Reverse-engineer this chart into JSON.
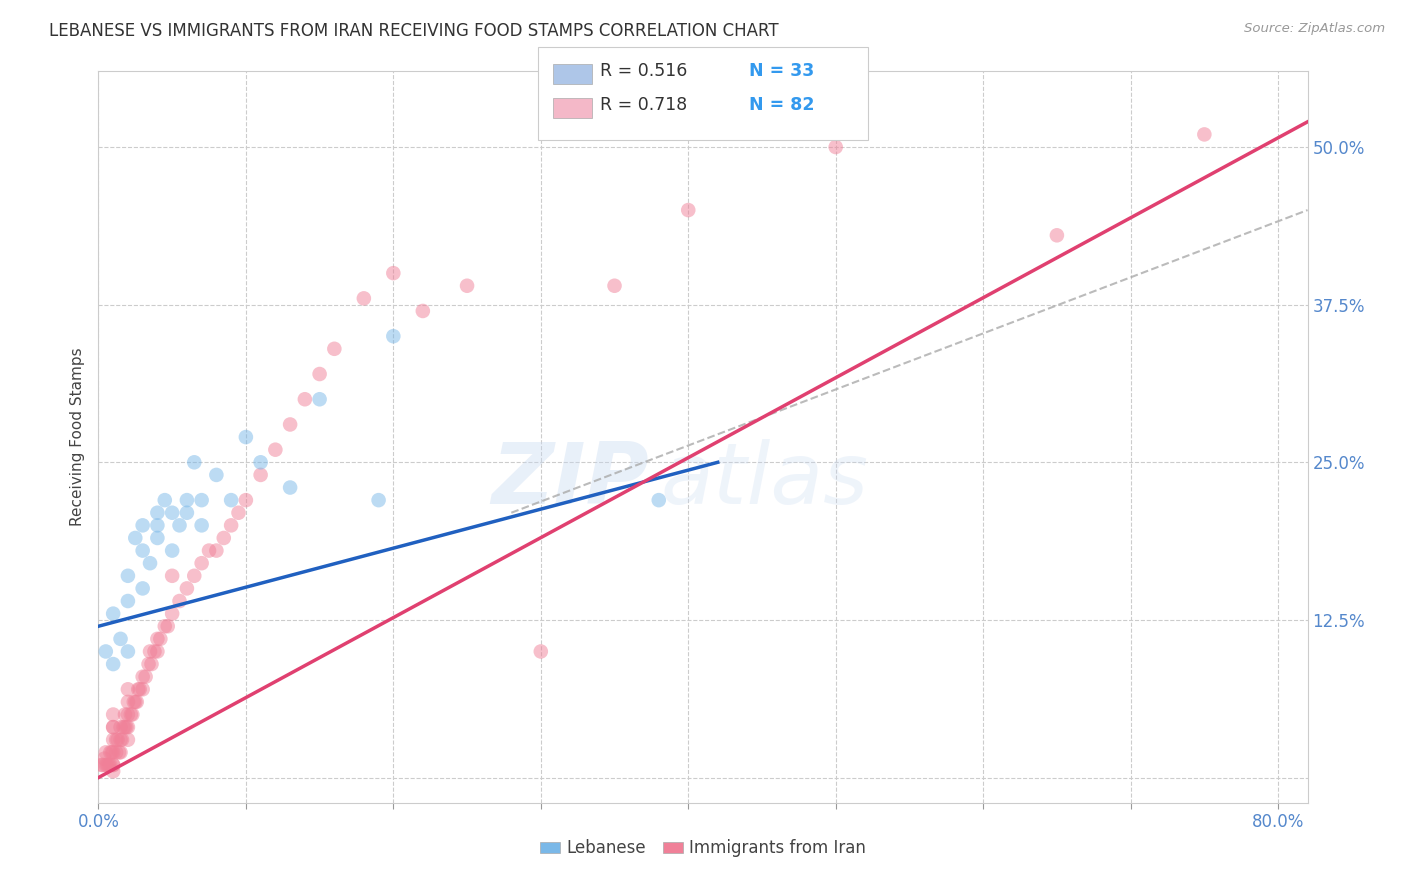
{
  "title": "LEBANESE VS IMMIGRANTS FROM IRAN RECEIVING FOOD STAMPS CORRELATION CHART",
  "source": "Source: ZipAtlas.com",
  "ylabel": "Receiving Food Stamps",
  "watermark_zip": "ZIP",
  "watermark_atlas": "atlas",
  "xlim": [
    0.0,
    0.82
  ],
  "ylim": [
    -0.02,
    0.56
  ],
  "xticks": [
    0.0,
    0.1,
    0.2,
    0.3,
    0.4,
    0.5,
    0.6,
    0.7,
    0.8
  ],
  "yticks": [
    0.0,
    0.125,
    0.25,
    0.375,
    0.5
  ],
  "yticklabels_right": [
    "",
    "12.5%",
    "25.0%",
    "37.5%",
    "50.0%"
  ],
  "legend_entries": [
    {
      "label": "Lebanese",
      "R": "0.516",
      "N": "33",
      "color": "#aec6e8"
    },
    {
      "label": "Immigrants from Iran",
      "R": "0.718",
      "N": "82",
      "color": "#f4b8c8"
    }
  ],
  "blue_scatter_x": [
    0.005,
    0.01,
    0.01,
    0.015,
    0.02,
    0.02,
    0.02,
    0.025,
    0.03,
    0.03,
    0.03,
    0.035,
    0.04,
    0.04,
    0.04,
    0.045,
    0.05,
    0.05,
    0.055,
    0.06,
    0.06,
    0.065,
    0.07,
    0.07,
    0.08,
    0.09,
    0.1,
    0.11,
    0.13,
    0.15,
    0.19,
    0.2,
    0.38
  ],
  "blue_scatter_y": [
    0.1,
    0.09,
    0.13,
    0.11,
    0.1,
    0.14,
    0.16,
    0.19,
    0.15,
    0.18,
    0.2,
    0.17,
    0.2,
    0.21,
    0.19,
    0.22,
    0.18,
    0.21,
    0.2,
    0.22,
    0.21,
    0.25,
    0.2,
    0.22,
    0.24,
    0.22,
    0.27,
    0.25,
    0.23,
    0.3,
    0.22,
    0.35,
    0.22
  ],
  "pink_scatter_x": [
    0.002,
    0.003,
    0.004,
    0.005,
    0.005,
    0.006,
    0.007,
    0.008,
    0.008,
    0.009,
    0.01,
    0.01,
    0.01,
    0.01,
    0.01,
    0.01,
    0.01,
    0.01,
    0.012,
    0.012,
    0.013,
    0.014,
    0.015,
    0.015,
    0.015,
    0.016,
    0.017,
    0.018,
    0.018,
    0.019,
    0.02,
    0.02,
    0.02,
    0.02,
    0.02,
    0.022,
    0.023,
    0.024,
    0.025,
    0.026,
    0.027,
    0.028,
    0.03,
    0.03,
    0.032,
    0.034,
    0.035,
    0.036,
    0.038,
    0.04,
    0.04,
    0.042,
    0.045,
    0.047,
    0.05,
    0.05,
    0.055,
    0.06,
    0.065,
    0.07,
    0.075,
    0.08,
    0.085,
    0.09,
    0.095,
    0.1,
    0.11,
    0.12,
    0.13,
    0.14,
    0.15,
    0.16,
    0.18,
    0.2,
    0.22,
    0.25,
    0.3,
    0.35,
    0.4,
    0.5,
    0.65,
    0.75
  ],
  "pink_scatter_y": [
    0.01,
    0.01,
    0.015,
    0.01,
    0.02,
    0.01,
    0.01,
    0.01,
    0.02,
    0.02,
    0.005,
    0.01,
    0.01,
    0.02,
    0.03,
    0.04,
    0.04,
    0.05,
    0.02,
    0.03,
    0.03,
    0.02,
    0.02,
    0.03,
    0.04,
    0.03,
    0.04,
    0.04,
    0.05,
    0.04,
    0.03,
    0.04,
    0.05,
    0.06,
    0.07,
    0.05,
    0.05,
    0.06,
    0.06,
    0.06,
    0.07,
    0.07,
    0.07,
    0.08,
    0.08,
    0.09,
    0.1,
    0.09,
    0.1,
    0.1,
    0.11,
    0.11,
    0.12,
    0.12,
    0.13,
    0.16,
    0.14,
    0.15,
    0.16,
    0.17,
    0.18,
    0.18,
    0.19,
    0.2,
    0.21,
    0.22,
    0.24,
    0.26,
    0.28,
    0.3,
    0.32,
    0.34,
    0.38,
    0.4,
    0.37,
    0.39,
    0.1,
    0.39,
    0.45,
    0.5,
    0.43,
    0.51
  ],
  "blue_line": {
    "x": [
      0.0,
      0.42
    ],
    "y": [
      0.12,
      0.25
    ]
  },
  "pink_line": {
    "x": [
      0.0,
      0.82
    ],
    "y": [
      0.0,
      0.52
    ]
  },
  "gray_dash_line": {
    "x": [
      0.28,
      0.82
    ],
    "y": [
      0.21,
      0.45
    ]
  },
  "scatter_size": 110,
  "scatter_alpha": 0.5,
  "blue_color": "#7ab8e8",
  "pink_color": "#f08098",
  "blue_line_color": "#2060c0",
  "pink_line_color": "#e04070",
  "gray_dash_color": "#aaaaaa",
  "grid_color": "#cccccc",
  "title_color": "#333333",
  "axis_tick_color": "#5588cc",
  "legend_R_color": "#333333",
  "legend_N_color": "#3399ee",
  "legend_box_border": "#cccccc",
  "bottom_label_color": "#444444"
}
